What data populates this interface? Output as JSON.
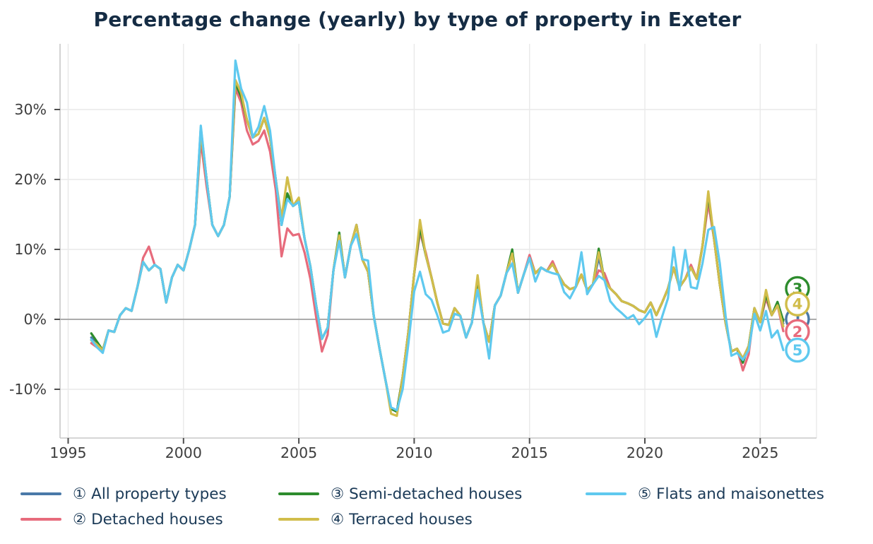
{
  "title": "Percentage change (yearly) by type of property in Exeter",
  "colors": {
    "all_property": "#4a79a8",
    "detached": "#e76b7c",
    "semi_detached": "#2d8c2d",
    "terraced": "#d1bd4b",
    "flats": "#5fc9ef",
    "title_text": "#152c44",
    "legend_text": "#1b3a57",
    "tick_text": "#3d3d3d",
    "grid": "#e9e9e9",
    "zero_line": "#a0a0a0",
    "spine": "#c8c8c8"
  },
  "chart_data": {
    "type": "line",
    "title": "Percentage change (yearly) by type of property in Exeter",
    "xlabel": "",
    "ylabel": "",
    "grid": true,
    "legend_position": "bottom",
    "x_axis": {
      "ticks": [
        1995,
        2000,
        2005,
        2010,
        2015,
        2020,
        2025
      ],
      "range": [
        1994.65,
        2027.45
      ]
    },
    "y_axis": {
      "tick_values": [
        -10,
        0,
        10,
        20,
        30
      ],
      "tick_labels": [
        "-10%",
        "0%",
        "10%",
        "20%",
        "30%"
      ],
      "range": [
        -17,
        39.4
      ],
      "unit": "%"
    },
    "x_start": 1996,
    "x_step": 0.25,
    "x_end": 2026,
    "series": [
      {
        "digit": "1",
        "name": "All property types",
        "legend_label": "① All property types",
        "color": "#4a79a8",
        "values": [
          -2.6,
          -3.6,
          -4.4,
          -1.6,
          -1.8,
          0.6,
          1.6,
          1.2,
          4.6,
          8.2,
          7,
          7.8,
          7.2,
          2.4,
          6,
          7.8,
          7,
          10,
          13.5,
          27.4,
          20,
          13.5,
          11.9,
          13.5,
          17.5,
          33.2,
          31.8,
          28.5,
          26,
          26.5,
          28.8,
          26,
          20,
          13.5,
          18,
          16.2,
          16.8,
          11.5,
          7.6,
          2,
          -2.8,
          -1.2,
          7,
          12,
          6,
          10.5,
          13.5,
          8.6,
          6.8,
          0.5,
          -4.2,
          -8.6,
          -12.8,
          -13.2,
          -8.2,
          -1.8,
          6.5,
          13,
          9.2,
          6,
          2.4,
          -0.6,
          -0.8,
          1.6,
          0.5,
          -2.6,
          -0.5,
          5.8,
          -0.5,
          -3.2,
          2,
          3.4,
          6.6,
          9.4,
          3.8,
          6.4,
          8.8,
          6.6,
          7.4,
          6.9,
          7.9,
          6.4,
          5,
          4.3,
          4.6,
          6.4,
          4.2,
          5,
          8.8,
          5.6,
          4.4,
          3.6,
          2.6,
          2.3,
          1.9,
          1.3,
          1,
          2.4,
          0.6,
          2.4,
          4.4,
          7.4,
          4.6,
          5.8,
          7.4,
          5.8,
          10.5,
          17.2,
          11.5,
          5,
          -0.5,
          -4.6,
          -4.2,
          -5.6,
          -3.8,
          1.6,
          -0.4,
          3.3,
          0.6,
          2,
          -0.6
        ]
      },
      {
        "digit": "2",
        "name": "Detached houses",
        "legend_label": "② Detached houses",
        "color": "#e76b7c",
        "values": [
          -3.4,
          -4,
          -4.4,
          -1.6,
          -1.8,
          0.6,
          1.6,
          1.2,
          4.6,
          8.8,
          10.4,
          7.8,
          7.2,
          2.4,
          6,
          7.8,
          7,
          10,
          13.5,
          25.5,
          19,
          13.5,
          11.9,
          13.5,
          17.5,
          33,
          31,
          27,
          25,
          25.5,
          27,
          24,
          18.5,
          9,
          13,
          12,
          12.2,
          9.5,
          5.8,
          0.3,
          -4.6,
          -2.2,
          7,
          12,
          6,
          10.5,
          13.5,
          8.6,
          6.8,
          0.5,
          -4.2,
          -8.6,
          -12.8,
          -13.2,
          -8.2,
          -1.8,
          6.5,
          12.4,
          9.6,
          6,
          2.4,
          -0.6,
          -0.8,
          1.6,
          0.5,
          -2.6,
          -0.5,
          5.8,
          -0.5,
          -3.2,
          2,
          3.4,
          6.6,
          9.4,
          3.8,
          6.4,
          9.2,
          6.6,
          7.4,
          6.9,
          8.3,
          6.4,
          5,
          4.3,
          4.6,
          6.4,
          4.2,
          5,
          7,
          6.6,
          4.4,
          3.6,
          2.6,
          2.3,
          1.9,
          1.3,
          1,
          2.4,
          0.6,
          2.4,
          4.4,
          7.4,
          4.6,
          5.8,
          7.8,
          5.8,
          10.5,
          16.6,
          11.5,
          5,
          -0.5,
          -4.6,
          -4.2,
          -7.3,
          -5,
          1.6,
          -0.4,
          3,
          0.6,
          2,
          -1.7
        ]
      },
      {
        "digit": "3",
        "name": "Semi-detached houses",
        "legend_label": "③ Semi-detached houses",
        "color": "#2d8c2d",
        "values": [
          -2,
          -3.2,
          -4.4,
          -1.6,
          -1.8,
          0.6,
          1.6,
          1.2,
          4.6,
          8.2,
          7,
          7.8,
          7.2,
          2.4,
          6,
          7.8,
          7,
          10,
          13.5,
          26.8,
          20,
          13.5,
          11.9,
          13.5,
          17.5,
          33.8,
          31.8,
          28.5,
          26,
          26.5,
          28.8,
          26,
          20,
          13.5,
          18,
          16.2,
          16.8,
          11.5,
          7.6,
          2,
          -2.8,
          -1.2,
          7,
          12.4,
          6,
          10.5,
          13.5,
          8.6,
          6.8,
          0.5,
          -4.2,
          -8.6,
          -12.8,
          -13.2,
          -8.2,
          -1.8,
          6.5,
          13.2,
          9.2,
          6,
          2.4,
          -0.6,
          -0.8,
          1.6,
          0.5,
          -2.6,
          -0.5,
          5.8,
          -0.5,
          -3.2,
          2,
          3.4,
          6.6,
          10,
          3.8,
          6.4,
          8.8,
          6.6,
          7.4,
          6.9,
          7.9,
          6.4,
          5,
          4.3,
          4.6,
          6.4,
          4.2,
          5,
          10.1,
          5.6,
          4.4,
          3.6,
          2.6,
          2.3,
          1.9,
          1.3,
          1,
          2.4,
          0.6,
          2.4,
          4.4,
          7.4,
          4.6,
          5.8,
          7.4,
          5.8,
          10.5,
          17.8,
          11.5,
          5,
          -0.5,
          -4.6,
          -4.2,
          -6.2,
          -3.8,
          1.6,
          -0.4,
          3.6,
          0.6,
          2.5,
          -0.2
        ]
      },
      {
        "digit": "4",
        "name": "Terraced houses",
        "legend_label": "④ Terraced houses",
        "color": "#d1bd4b",
        "values": [
          -3,
          -3.6,
          -4.4,
          -1.6,
          -1.8,
          0.6,
          1.6,
          1.2,
          4.6,
          8.2,
          7,
          7.8,
          7.2,
          2.4,
          6,
          7.8,
          7,
          10,
          13.5,
          26.8,
          20,
          13.5,
          11.9,
          13.5,
          17.5,
          34.2,
          32.4,
          28.5,
          26,
          26.5,
          28.8,
          26,
          20,
          14.5,
          20.3,
          16.2,
          17.4,
          11.5,
          7.6,
          2,
          -2.8,
          -1.2,
          7,
          12,
          6,
          10.5,
          13.5,
          8.6,
          6.8,
          0.5,
          -4.2,
          -8.6,
          -13.5,
          -13.8,
          -8.2,
          -1.8,
          6.5,
          14.2,
          9.2,
          6,
          2.4,
          -0.6,
          -0.8,
          1.6,
          0.5,
          -2.6,
          -0.5,
          6.3,
          -0.5,
          -3.2,
          2,
          3.4,
          6.6,
          9.4,
          3.8,
          6.4,
          8.8,
          6.6,
          7.4,
          6.9,
          7.9,
          6.4,
          5,
          4.3,
          4.6,
          6.4,
          4.2,
          5,
          9.6,
          5.6,
          4.4,
          3.6,
          2.6,
          2.3,
          1.9,
          1.3,
          1,
          2.4,
          0.6,
          2.4,
          4.4,
          7.4,
          4.6,
          5.8,
          7.4,
          5.8,
          10.5,
          18.3,
          11.5,
          5,
          -0.5,
          -4.6,
          -4.2,
          -5.6,
          -3.8,
          1.6,
          -0.4,
          4.2,
          0.6,
          2,
          -1
        ]
      },
      {
        "digit": "5",
        "name": "Flats and maisonettes",
        "legend_label": "⑤ Flats and maisonettes",
        "color": "#5fc9ef",
        "values": [
          -2.9,
          -4,
          -4.8,
          -1.6,
          -1.8,
          0.6,
          1.6,
          1.2,
          4.6,
          8.2,
          7,
          7.8,
          7.2,
          2.4,
          6,
          7.8,
          7,
          10,
          13.5,
          27.7,
          20,
          13.5,
          11.9,
          13.5,
          17.5,
          37,
          33,
          31,
          26,
          27.5,
          30.5,
          27,
          20,
          13.5,
          17.2,
          16.2,
          16.8,
          11.5,
          7.6,
          2,
          -2.8,
          -1.2,
          7,
          11.2,
          6,
          10.5,
          12.2,
          8.6,
          8.4,
          0.5,
          -4.2,
          -8.6,
          -12.6,
          -13,
          -10,
          -3.5,
          4,
          6.8,
          3.6,
          2.8,
          0.6,
          -1.9,
          -1.6,
          0.8,
          0.5,
          -2.6,
          -0.5,
          4.2,
          -0.5,
          -5.6,
          2,
          3.4,
          6.6,
          8,
          3.8,
          6.4,
          8.8,
          5.4,
          7.4,
          6.9,
          6.6,
          6.4,
          3.9,
          3,
          4.6,
          9.6,
          3.6,
          5,
          6.2,
          5.6,
          2.6,
          1.6,
          0.9,
          0.1,
          0.6,
          -0.7,
          0.2,
          1.4,
          -2.5,
          0.4,
          3,
          10.3,
          4.2,
          9.9,
          4.6,
          4.4,
          8,
          12.8,
          13.2,
          8,
          0.5,
          -5.2,
          -4.8,
          -5.8,
          -4.4,
          0.8,
          -1.6,
          1.2,
          -2.6,
          -1.6,
          -4.4
        ]
      }
    ],
    "end_labels": [
      {
        "series_index": 2,
        "digit": "3",
        "label_value": 4.4
      },
      {
        "series_index": 0,
        "digit": "1",
        "label_value": 0.05
      },
      {
        "series_index": 3,
        "digit": "4",
        "label_value": 2.2
      },
      {
        "series_index": 1,
        "digit": "2",
        "label_value": -1.75
      },
      {
        "series_index": 4,
        "digit": "5",
        "label_value": -4.4
      }
    ]
  },
  "legend": {
    "items": [
      {
        "label": "① All property types",
        "color": "#4a79a8"
      },
      {
        "label": "② Detached houses",
        "color": "#e76b7c"
      },
      {
        "label": "③ Semi-detached houses",
        "color": "#2d8c2d"
      },
      {
        "label": "④ Terraced houses",
        "color": "#d1bd4b"
      },
      {
        "label": "⑤ Flats and maisonettes",
        "color": "#5fc9ef"
      }
    ]
  }
}
